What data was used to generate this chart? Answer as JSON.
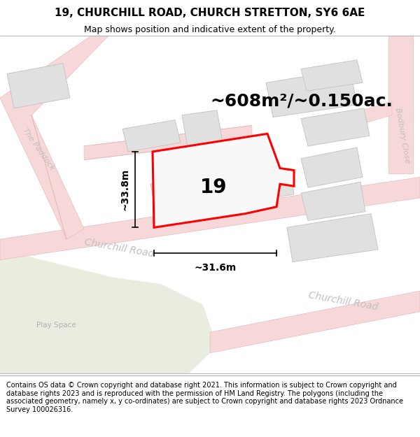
{
  "title": "19, CHURCHILL ROAD, CHURCH STRETTON, SY6 6AE",
  "subtitle": "Map shows position and indicative extent of the property.",
  "area_text": "~608m²/~0.150ac.",
  "number_label": "19",
  "dim_width": "~31.6m",
  "dim_height": "~33.8m",
  "footer": "Contains OS data © Crown copyright and database right 2021. This information is subject to Crown copyright and database rights 2023 and is reproduced with the permission of HM Land Registry. The polygons (including the associated geometry, namely x, y co-ordinates) are subject to Crown copyright and database rights 2023 Ordnance Survey 100026316.",
  "bg_color": "#ffffff",
  "map_bg": "#ffffff",
  "road_color": "#f7d8d8",
  "road_outline": "#e8b0b0",
  "road_centerline": "#e8b0b0",
  "building_color": "#e0e0e0",
  "building_outline": "#c0c0c0",
  "plot_color": "#f0f0f0",
  "plot_outline": "#ff0000",
  "grass_color": "#e8ede0",
  "title_fontsize": 11,
  "subtitle_fontsize": 9,
  "area_fontsize": 18,
  "label_fontsize": 20,
  "dim_fontsize": 10,
  "footer_fontsize": 7,
  "road_label_color": "#c0c0c0",
  "road_label_fontsize": 10,
  "paddock_label_color": "#c0c0c0",
  "paddock_label_fontsize": 9
}
